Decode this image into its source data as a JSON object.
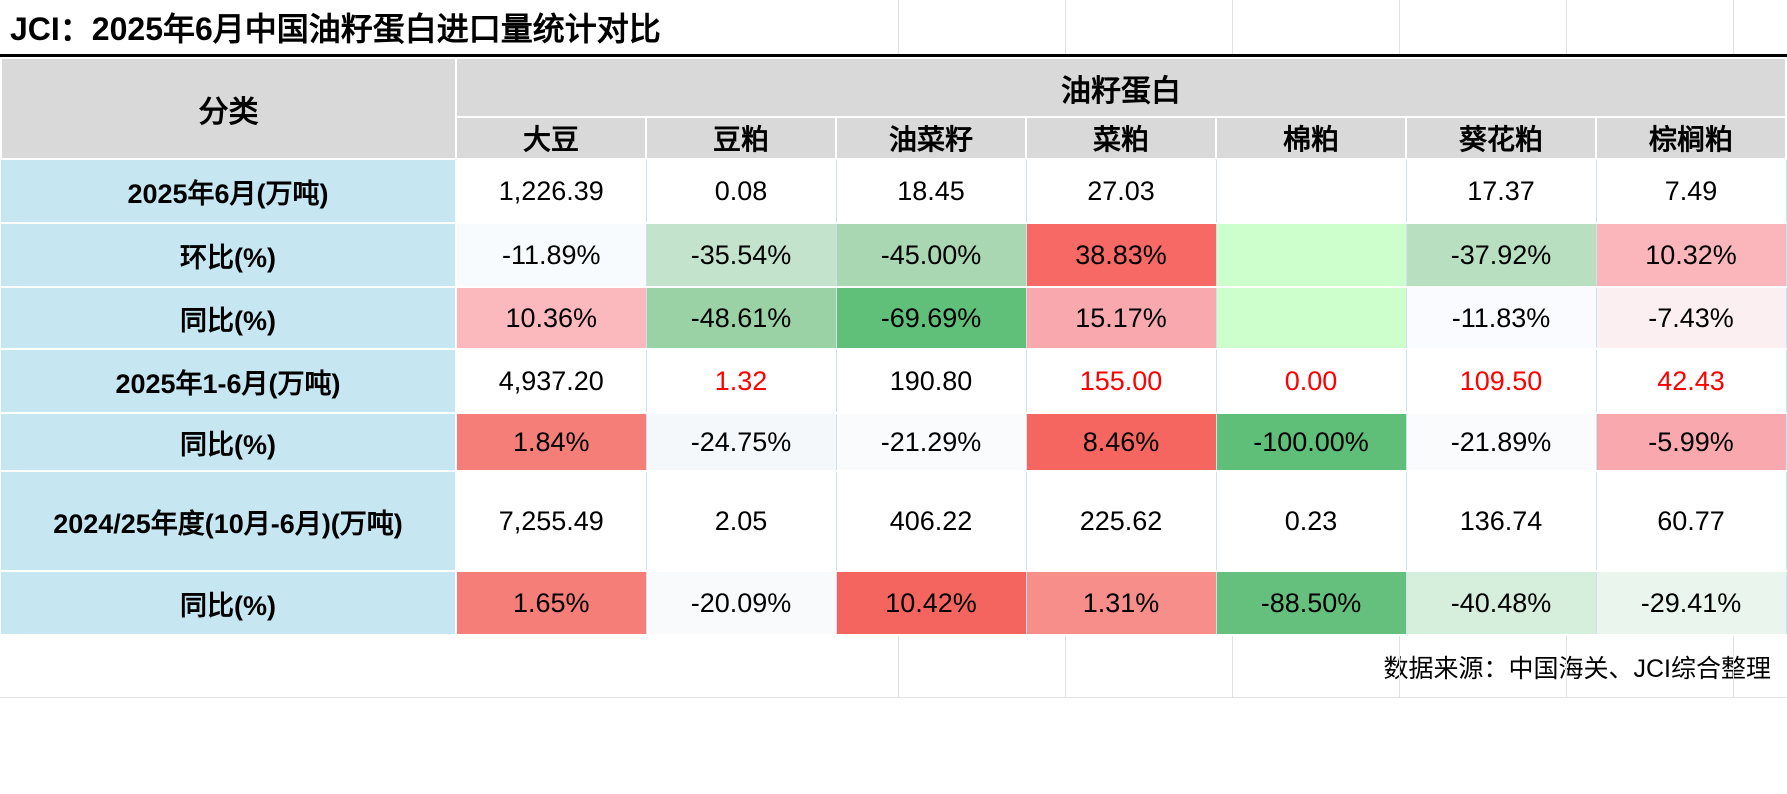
{
  "title": "JCI：2025年6月中国油籽蛋白进口量统计对比",
  "source": "数据来源：中国海关、JCI综合整理",
  "colors": {
    "header_bg": "#D9D9D9",
    "row_label_bg": "#C6E6F1",
    "highlight_red_text": "#FF0000",
    "strong_increase_bg": "#F56560",
    "strong_decrease_bg": "#5FBE77",
    "blank_cell_bg": "#CCFFCC"
  },
  "chart_data": {
    "type": "table",
    "title": "JCI：2025年6月中国油籽蛋白进口量统计对比",
    "row_header": "分类",
    "group_header": "油籽蛋白",
    "columns": [
      "大豆",
      "豆粕",
      "油菜籽",
      "菜粕",
      "棉粕",
      "葵花粕",
      "棕榈粕"
    ],
    "rows": [
      {
        "label": "2025年6月(万吨)",
        "kind": "value",
        "values": [
          "1,226.39",
          "0.08",
          "18.45",
          "27.03",
          "",
          "17.37",
          "7.49"
        ],
        "bg": [
          "#FFFFFF",
          "#FFFFFF",
          "#FFFFFF",
          "#FFFFFF",
          "#FFFFFF",
          "#FFFFFF",
          "#FFFFFF"
        ],
        "fg": [
          "#000000",
          "#000000",
          "#000000",
          "#000000",
          "#000000",
          "#000000",
          "#000000"
        ]
      },
      {
        "label": "环比(%)",
        "kind": "percent",
        "values": [
          "-11.89%",
          "-35.54%",
          "-45.00%",
          "38.83%",
          "",
          "-37.92%",
          "10.32%"
        ],
        "bg": [
          "#F8FBFD",
          "#C4E3CC",
          "#A8D7B1",
          "#F76964",
          "#CCFFCC",
          "#B7DFC0",
          "#FBB6BB"
        ],
        "fg": [
          "#000000",
          "#000000",
          "#000000",
          "#000000",
          "#000000",
          "#000000",
          "#000000"
        ]
      },
      {
        "label": "同比(%)",
        "kind": "percent",
        "values": [
          "10.36%",
          "-48.61%",
          "-69.69%",
          "15.17%",
          "",
          "-11.83%",
          "-7.43%"
        ],
        "bg": [
          "#FBB9BE",
          "#9AD2A6",
          "#60BF78",
          "#F9A8AD",
          "#CCFFCC",
          "#FAFBFE",
          "#FBEFF2"
        ],
        "fg": [
          "#000000",
          "#000000",
          "#000000",
          "#000000",
          "#000000",
          "#000000",
          "#000000"
        ]
      },
      {
        "label": "2025年1-6月(万吨)",
        "kind": "value",
        "values": [
          "4,937.20",
          "1.32",
          "190.80",
          "155.00",
          "0.00",
          "109.50",
          "42.43"
        ],
        "bg": [
          "#FFFFFF",
          "#FFFFFF",
          "#FFFFFF",
          "#FFFFFF",
          "#FFFFFF",
          "#FFFFFF",
          "#FFFFFF"
        ],
        "fg": [
          "#000000",
          "#FF0000",
          "#000000",
          "#FF0000",
          "#FF0000",
          "#FF0000",
          "#FF0000"
        ]
      },
      {
        "label": "同比(%)",
        "kind": "percent",
        "values": [
          "1.84%",
          "-24.75%",
          "-21.29%",
          "8.46%",
          "-100.00%",
          "-21.89%",
          "-5.99%"
        ],
        "bg": [
          "#F67E79",
          "#F4F8FA",
          "#F9FBFD",
          "#F56661",
          "#5FBE77",
          "#F9FBFD",
          "#F9A9AE"
        ],
        "fg": [
          "#000000",
          "#000000",
          "#000000",
          "#000000",
          "#000000",
          "#000000",
          "#000000"
        ]
      },
      {
        "label": "2024/25年度(10月-6月)(万吨)",
        "kind": "value",
        "values": [
          "7,255.49",
          "2.05",
          "406.22",
          "225.62",
          "0.23",
          "136.74",
          "60.77"
        ],
        "bg": [
          "#FFFFFF",
          "#FFFFFF",
          "#FFFFFF",
          "#FFFFFF",
          "#FFFFFF",
          "#FFFFFF",
          "#FFFFFF"
        ],
        "fg": [
          "#000000",
          "#000000",
          "#000000",
          "#000000",
          "#000000",
          "#000000",
          "#000000"
        ]
      },
      {
        "label": "同比(%)",
        "kind": "percent",
        "values": [
          "1.65%",
          "-20.09%",
          "10.42%",
          "1.31%",
          "-88.50%",
          "-40.48%",
          "-29.41%"
        ],
        "bg": [
          "#F67E79",
          "#F8FAFC",
          "#F56560",
          "#F88E89",
          "#66C07D",
          "#D6EEDC",
          "#EAF5ED"
        ],
        "fg": [
          "#000000",
          "#000000",
          "#000000",
          "#000000",
          "#000000",
          "#000000",
          "#000000"
        ]
      }
    ],
    "source": "数据来源：中国海关、JCI综合整理"
  }
}
